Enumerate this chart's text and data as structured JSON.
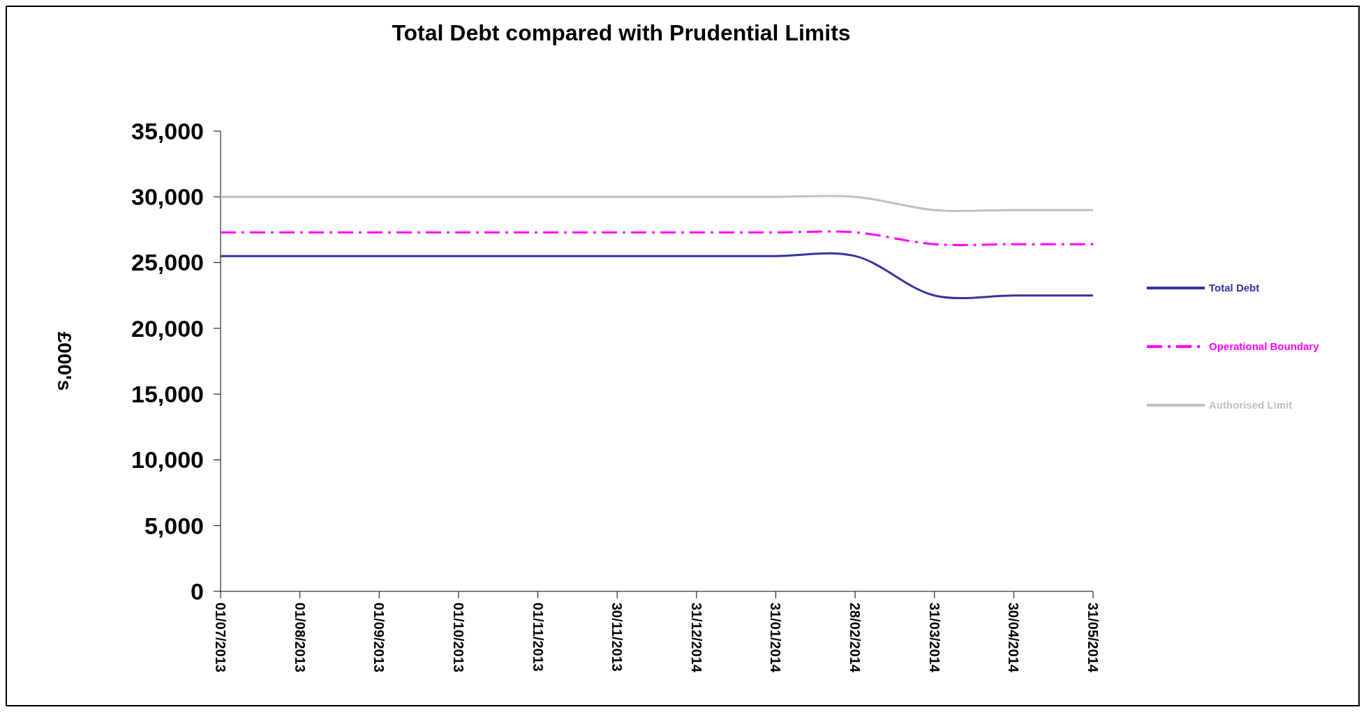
{
  "chart_data": {
    "type": "line",
    "title": "Total Debt compared with Prudential Limits",
    "ylabel": "£000's",
    "categories": [
      "01/07/2013",
      "01/08/2013",
      "01/09/2013",
      "01/10/2013",
      "01/11/2013",
      "30/11/2013",
      "31/12/2014",
      "31/01/2014",
      "28/02/2014",
      "31/03/2014",
      "30/04/2014",
      "31/05/2014"
    ],
    "series": [
      {
        "name": "Total Debt",
        "color": "#3333a0",
        "line_style": "solid",
        "values": [
          25500,
          25500,
          25500,
          25500,
          25500,
          25500,
          25500,
          25500,
          25500,
          22500,
          22500,
          22500
        ]
      },
      {
        "name": "Operational Boundary",
        "color": "#ff00ff",
        "line_style": "dashed",
        "values": [
          27300,
          27300,
          27300,
          27300,
          27300,
          27300,
          27300,
          27300,
          27300,
          26400,
          26400,
          26400
        ]
      },
      {
        "name": "Authorised Limit",
        "color": "#c0c0c0",
        "line_style": "solid",
        "values": [
          30000,
          30000,
          30000,
          30000,
          30000,
          30000,
          30000,
          30000,
          30000,
          29000,
          29000,
          29000
        ]
      }
    ],
    "ylim": [
      0,
      35000
    ],
    "yticks": [
      {
        "value": 0,
        "label": "0"
      },
      {
        "value": 5000,
        "label": "5,000"
      },
      {
        "value": 10000,
        "label": "10,000"
      },
      {
        "value": 15000,
        "label": "15,000"
      },
      {
        "value": 20000,
        "label": "20,000"
      },
      {
        "value": 25000,
        "label": "25,000"
      },
      {
        "value": 30000,
        "label": "30,000"
      },
      {
        "value": 35000,
        "label": "35,000"
      }
    ],
    "grid": false,
    "legend": "right",
    "marker": "none"
  }
}
